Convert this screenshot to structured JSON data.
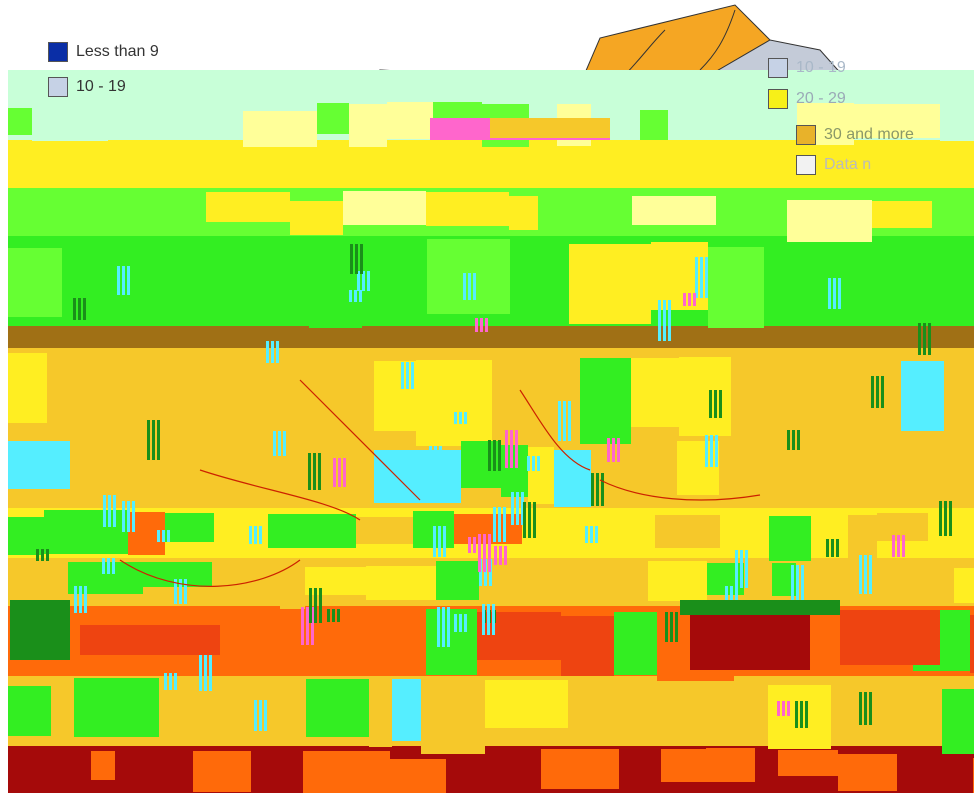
{
  "legend": {
    "items": [
      {
        "label": "Less than 9",
        "color": "#0a2ea6"
      },
      {
        "label": "10 - 19",
        "color": "#c6d2e6"
      },
      {
        "label": "10 - 19",
        "color": "#c6d2e6"
      },
      {
        "label": "20 - 29",
        "color": "#f7f018"
      },
      {
        "label": "30 and more",
        "color": "#e8b22a"
      },
      {
        "label": "Data n",
        "color": "#f2f2f2"
      }
    ]
  },
  "palette": {
    "green": "#33ee22",
    "lime": "#66ff33",
    "yellow": "#ffee22",
    "amber": "#f6c82a",
    "orange": "#ff6a0a",
    "red": "#ee4411",
    "darkred": "#a50a0a",
    "darkgreen": "#1a8f1a",
    "cyan": "#55eeff",
    "pink": "#ff66cc",
    "mint": "#c8ffd8",
    "paleyellow": "#ffff99",
    "brown": "#a07015"
  },
  "map": {
    "region_fills": [
      "#f5a623",
      "#c4cbd8",
      "#f7f7a8"
    ],
    "border_color": "#cc2200"
  }
}
